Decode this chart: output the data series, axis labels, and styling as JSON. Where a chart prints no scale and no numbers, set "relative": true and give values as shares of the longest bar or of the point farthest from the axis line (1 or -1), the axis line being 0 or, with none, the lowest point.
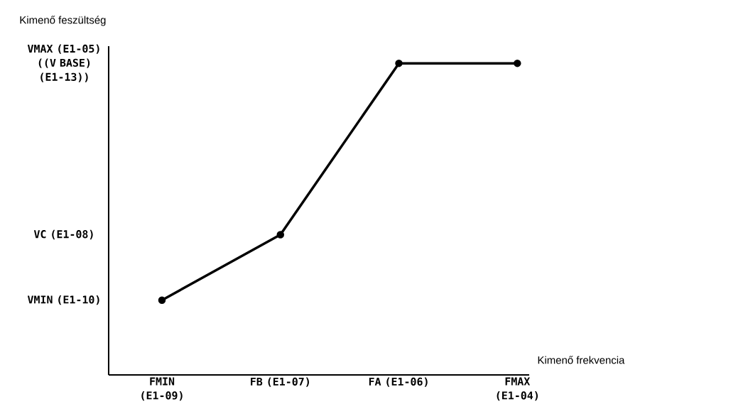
{
  "chart_data": {
    "type": "line",
    "relative": true,
    "xlabel": "Kimenő frekvencia",
    "ylabel": "Kimenő feszültség",
    "categories": [
      "FMIN (E1-09)",
      "FB (E1-07)",
      "FA (E1-06)",
      "FMAX (E1-04)"
    ],
    "values": [
      0.24,
      0.45,
      1,
      1
    ],
    "color": "#000000",
    "marker": "circle",
    "annotations": [
      "VMIN (E1-10)",
      "VC (E1-08)",
      "VMAX (E1-05) ((V BASE) (E1-13))"
    ]
  }
}
